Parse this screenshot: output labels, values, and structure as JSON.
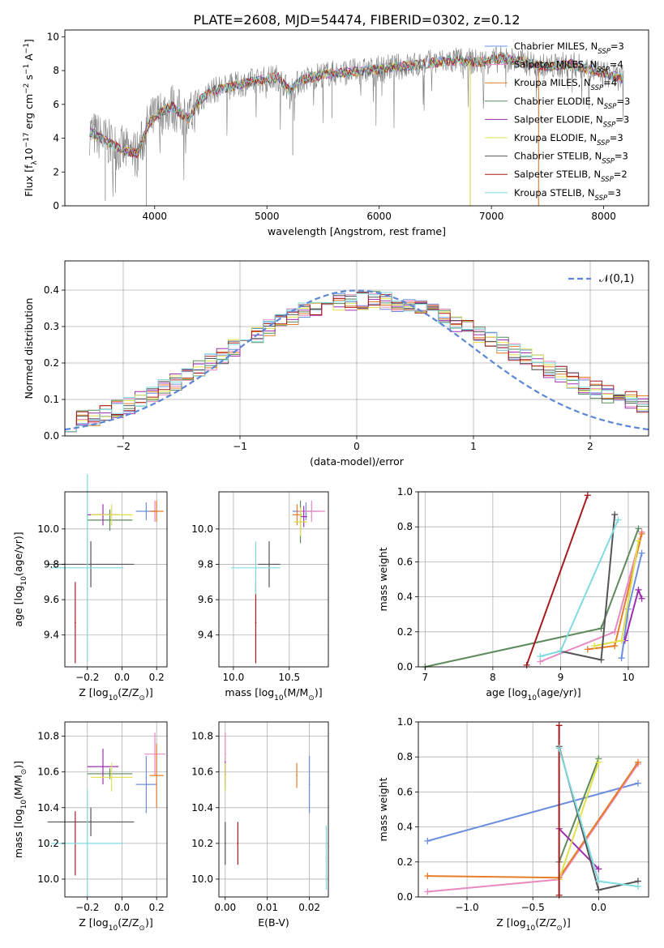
{
  "figure_title": "PLATE=2608, MJD=54474, FIBERID=0302, z=0.12",
  "models": [
    {
      "label": "Chabrier MILES, N$_{SSP}$=3",
      "name": "Chabrier MILES, N",
      "sub": "SSP",
      "suffix": "=3",
      "color": "#6b8ee0"
    },
    {
      "label": "Salpeter MILES, N$_{SSP}$=4",
      "name": "Salpeter MILES, N",
      "sub": "SSP",
      "suffix": "=4",
      "color": "#e889c0"
    },
    {
      "label": "Kroupa MILES, N$_{SSP}$=4",
      "name": "Kroupa MILES, N",
      "sub": "SSP",
      "suffix": "=4",
      "color": "#e57d2a"
    },
    {
      "label": "Chabrier ELODIE, N$_{SSP}$=3",
      "name": "Chabrier ELODIE, N",
      "sub": "SSP",
      "suffix": "=3",
      "color": "#5e8a5e"
    },
    {
      "label": "Salpeter ELODIE, N$_{SSP}$=3",
      "name": "Salpeter ELODIE, N",
      "sub": "SSP",
      "suffix": "=3",
      "color": "#9c2fb0"
    },
    {
      "label": "Kroupa ELODIE, N$_{SSP}$=3",
      "name": "Kroupa ELODIE, N",
      "sub": "SSP",
      "suffix": "=3",
      "color": "#e0e04a"
    },
    {
      "label": "Chabrier STELIB, N$_{SSP}$=3",
      "name": "Chabrier STELIB, N",
      "sub": "SSP",
      "suffix": "=3",
      "color": "#555555"
    },
    {
      "label": "Salpeter STELIB, N$_{SSP}$=2",
      "name": "Salpeter STELIB, N",
      "sub": "SSP",
      "suffix": "=2",
      "color": "#a61c1c"
    },
    {
      "label": "Kroupa STELIB, N$_{SSP}$=3",
      "name": "Kroupa STELIB, N",
      "sub": "SSP",
      "suffix": "=3",
      "color": "#7fdbe0"
    }
  ],
  "chart_data": [
    {
      "id": "spectrum",
      "type": "line",
      "xlabel": "wavelength [Angstrom, rest frame]",
      "ylabel": "Flux [f$_\\lambda$10$^{-17}$ erg cm$^{-2}$ s$^{-1}$ A$^{-1}$]",
      "xlim": [
        3200,
        8400
      ],
      "ylim": [
        0,
        10.4
      ],
      "xticks": [
        4000,
        5000,
        6000,
        7000,
        8000
      ],
      "yticks": [
        0,
        2,
        4,
        6,
        8,
        10
      ],
      "grid": false,
      "legend": "right",
      "data_color": "#808080",
      "continuum": [
        [
          3420,
          4.4
        ],
        [
          3600,
          3.7
        ],
        [
          3750,
          3.2
        ],
        [
          3850,
          3.1
        ],
        [
          3950,
          4.9
        ],
        [
          4050,
          5.5
        ],
        [
          4150,
          5.9
        ],
        [
          4300,
          5.1
        ],
        [
          4400,
          6.2
        ],
        [
          4500,
          6.8
        ],
        [
          4700,
          7.1
        ],
        [
          4900,
          7.4
        ],
        [
          5100,
          7.6
        ],
        [
          5200,
          6.8
        ],
        [
          5300,
          7.4
        ],
        [
          5500,
          7.8
        ],
        [
          5700,
          7.9
        ],
        [
          5900,
          8.0
        ],
        [
          6100,
          8.2
        ],
        [
          6300,
          8.3
        ],
        [
          6500,
          8.5
        ],
        [
          6700,
          8.6
        ],
        [
          6900,
          8.5
        ],
        [
          7100,
          8.7
        ],
        [
          7300,
          8.5
        ],
        [
          7500,
          8.2
        ],
        [
          7700,
          8.4
        ],
        [
          7900,
          8.0
        ],
        [
          8180,
          7.5
        ]
      ],
      "glitches": [
        [
          6810,
          0
        ],
        [
          7420,
          0
        ],
        [
          3560,
          0.3
        ],
        [
          5230,
          3.0
        ],
        [
          5580,
          5.2
        ],
        [
          3925,
          0
        ]
      ]
    },
    {
      "id": "residuals",
      "type": "bar",
      "xlabel": "(data-model)/error",
      "ylabel": "Normed distribution",
      "xlim": [
        -2.5,
        2.5
      ],
      "ylim": [
        0,
        0.48
      ],
      "xticks": [
        -2,
        -1,
        0,
        1,
        2
      ],
      "xtick_labels": [
        "−2",
        "−1",
        "0",
        "1",
        "2"
      ],
      "yticks": [
        0,
        0.1,
        0.2,
        0.3,
        0.4
      ],
      "yticks_labels": [
        "0.0",
        "0.1",
        "0.2",
        "0.3",
        "0.4"
      ],
      "grid": true,
      "legend": "top-right",
      "gaussian_label": "𝒩(0,1)",
      "gaussian_color": "#5b87d6",
      "bin_width": 0.1
    },
    {
      "id": "z_age",
      "type": "scatter",
      "xlabel": "Z [log$_{10}$(Z/Z$_\\odot$)]",
      "ylabel": "age  [log$_{10}$(age/yr)]",
      "xlim": [
        -0.33,
        0.26
      ],
      "ylim": [
        9.22,
        10.21
      ],
      "xticks": [
        -0.2,
        0.0,
        0.2
      ],
      "xtick_labels": [
        "−0.2",
        "0.0",
        "0.2"
      ],
      "yticks": [
        9.4,
        9.6,
        9.8,
        10.0
      ],
      "ytick_labels": [
        "9.4",
        "9.6",
        "9.8",
        "10.0"
      ],
      "grid": true,
      "points": [
        {
          "m": 0,
          "x": 0.14,
          "xe": 0.06,
          "y": 10.1,
          "ye": 0.05
        },
        {
          "m": 1,
          "x": 0.19,
          "xe": 0.02,
          "y": 10.1,
          "ye": 0.06
        },
        {
          "m": 2,
          "x": 0.2,
          "xe": 0.04,
          "y": 10.1,
          "ye": 0.06
        },
        {
          "m": 3,
          "x": -0.07,
          "xe": 0.13,
          "y": 10.05,
          "ye": 0.06
        },
        {
          "m": 4,
          "x": -0.11,
          "xe": 0.09,
          "y": 10.08,
          "ye": 0.06
        },
        {
          "m": 5,
          "x": -0.06,
          "xe": 0.12,
          "y": 10.08,
          "ye": 0.06
        },
        {
          "m": 6,
          "x": -0.18,
          "xe": 0.25,
          "y": 9.8,
          "ye": 0.13
        },
        {
          "m": 7,
          "x": -0.27,
          "xe": 0.0,
          "y": 9.47,
          "ye": 0.23
        },
        {
          "m": 8,
          "x": -0.2,
          "xe": 0.21,
          "y": 9.78,
          "ye": 0.53
        }
      ]
    },
    {
      "id": "mass_age",
      "type": "scatter",
      "xlabel": "mass [log$_{10}$(M/M$_\\odot$)]",
      "xlim": [
        9.87,
        10.85
      ],
      "ylim": [
        9.22,
        10.21
      ],
      "xticks": [
        10.0,
        10.5
      ],
      "xtick_labels": [
        "10.0",
        "10.5"
      ],
      "yticks": [
        9.4,
        9.6,
        9.8,
        10.0
      ],
      "ytick_labels": [
        "9.4",
        "9.6",
        "9.8",
        "10.0"
      ],
      "grid": true,
      "points": [
        {
          "m": 0,
          "x": 10.65,
          "xe": 0.12,
          "y": 10.1,
          "ye": 0.05
        },
        {
          "m": 1,
          "x": 10.7,
          "xe": 0.12,
          "y": 10.1,
          "ye": 0.06
        },
        {
          "m": 2,
          "x": 10.57,
          "xe": 0.04,
          "y": 10.08,
          "ye": 0.06
        },
        {
          "m": 3,
          "x": 10.6,
          "xe": 0.05,
          "y": 10.04,
          "ye": 0.12
        },
        {
          "m": 4,
          "x": 10.63,
          "xe": 0.03,
          "y": 10.07,
          "ye": 0.06
        },
        {
          "m": 5,
          "x": 10.6,
          "xe": 0.06,
          "y": 10.04,
          "ye": 0.08
        },
        {
          "m": 6,
          "x": 10.32,
          "xe": 0.1,
          "y": 9.8,
          "ye": 0.13
        },
        {
          "m": 7,
          "x": 10.2,
          "xe": 0.0,
          "y": 9.47,
          "ye": 0.23
        },
        {
          "m": 8,
          "x": 10.2,
          "xe": 0.22,
          "y": 9.78,
          "ye": 0.15
        }
      ]
    },
    {
      "id": "age_weight",
      "type": "line",
      "xlabel": "age  [log$_{10}$(age/yr)]",
      "ylabel": "mass weight",
      "xlim": [
        6.9,
        10.3
      ],
      "ylim": [
        0,
        1
      ],
      "xticks": [
        7,
        8,
        9,
        10
      ],
      "xtick_labels": [
        "7",
        "8",
        "9",
        "10"
      ],
      "yticks": [
        0,
        0.2,
        0.4,
        0.6,
        0.8,
        1.0
      ],
      "ytick_labels": [
        "0.0",
        "0.2",
        "0.4",
        "0.6",
        "0.8",
        "1.0"
      ],
      "grid": true,
      "series": [
        {
          "m": 0,
          "x": [
            9.9,
            10.0,
            10.2
          ],
          "y": [
            0.05,
            0.33,
            0.65
          ]
        },
        {
          "m": 1,
          "x": [
            8.7,
            9.8,
            10.2
          ],
          "y": [
            0.03,
            0.2,
            0.77
          ]
        },
        {
          "m": 2,
          "x": [
            9.4,
            9.8,
            10.2
          ],
          "y": [
            0.1,
            0.12,
            0.76
          ]
        },
        {
          "m": 3,
          "x": [
            7.0,
            9.6,
            10.15
          ],
          "y": [
            0.0,
            0.22,
            0.79
          ]
        },
        {
          "m": 4,
          "x": [
            9.95,
            10.15,
            10.2
          ],
          "y": [
            0.15,
            0.44,
            0.39
          ]
        },
        {
          "m": 5,
          "x": [
            9.5,
            9.9,
            10.15
          ],
          "y": [
            0.12,
            0.15,
            0.72
          ]
        },
        {
          "m": 6,
          "x": [
            9.0,
            9.6,
            9.8
          ],
          "y": [
            0.09,
            0.04,
            0.87
          ]
        },
        {
          "m": 7,
          "x": [
            8.5,
            9.4
          ],
          "y": [
            0.01,
            0.98
          ]
        },
        {
          "m": 8,
          "x": [
            8.7,
            9.0,
            9.85
          ],
          "y": [
            0.06,
            0.09,
            0.84
          ]
        }
      ]
    },
    {
      "id": "z_mass",
      "type": "scatter",
      "xlabel": "Z [log$_{10}$(Z/Z$_\\odot$)]",
      "ylabel": "mass [log$_{10}$(M/M$_\\odot$)]",
      "xlim": [
        -0.33,
        0.26
      ],
      "ylim": [
        9.9,
        10.88
      ],
      "xticks": [
        -0.2,
        0.0,
        0.2
      ],
      "xtick_labels": [
        "−0.2",
        "0.0",
        "0.2"
      ],
      "yticks": [
        10.0,
        10.2,
        10.4,
        10.6,
        10.8
      ],
      "ytick_labels": [
        "10.0",
        "10.2",
        "10.4",
        "10.6",
        "10.8"
      ],
      "grid": true,
      "points": [
        {
          "m": 0,
          "x": 0.14,
          "xe": 0.06,
          "y": 10.53,
          "ye": 0.16
        },
        {
          "m": 1,
          "x": 0.19,
          "xe": 0.06,
          "y": 10.7,
          "ye": 0.12
        },
        {
          "m": 2,
          "x": 0.2,
          "xe": 0.04,
          "y": 10.58,
          "ye": 0.18
        },
        {
          "m": 3,
          "x": -0.07,
          "xe": 0.13,
          "y": 10.59,
          "ye": 0.03
        },
        {
          "m": 4,
          "x": -0.11,
          "xe": 0.09,
          "y": 10.63,
          "ye": 0.1
        },
        {
          "m": 5,
          "x": -0.06,
          "xe": 0.12,
          "y": 10.57,
          "ye": 0.08
        },
        {
          "m": 6,
          "x": -0.18,
          "xe": 0.25,
          "y": 10.32,
          "ye": 0.08
        },
        {
          "m": 7,
          "x": -0.27,
          "xe": 0.0,
          "y": 10.2,
          "ye": 0.18
        },
        {
          "m": 8,
          "x": -0.2,
          "xe": 0.21,
          "y": 10.2,
          "ye": 0.3
        }
      ]
    },
    {
      "id": "ebv_mass",
      "type": "scatter",
      "xlabel": "E(B-V)",
      "xlim": [
        -0.0015,
        0.0245
      ],
      "ylim": [
        9.9,
        10.88
      ],
      "xticks": [
        0.0,
        0.01,
        0.02
      ],
      "xtick_labels": [
        "0.00",
        "0.01",
        "0.02"
      ],
      "yticks": [
        10.0,
        10.2,
        10.4,
        10.6,
        10.8
      ],
      "ytick_labels": [
        "10.0",
        "10.2",
        "10.4",
        "10.6",
        "10.8"
      ],
      "grid": true,
      "points": [
        {
          "m": 0,
          "x": 0.02,
          "xe": 0,
          "y": 10.53,
          "ye": 0.16
        },
        {
          "m": 1,
          "x": 0.0,
          "xe": 0,
          "y": 10.7,
          "ye": 0.12
        },
        {
          "m": 2,
          "x": 0.017,
          "xe": 0,
          "y": 10.58,
          "ye": 0.07
        },
        {
          "m": 3,
          "x": 0.0,
          "xe": 0,
          "y": 10.57,
          "ye": 0.07
        },
        {
          "m": 4,
          "x": 0.0,
          "xe": 0,
          "y": 10.6,
          "ye": 0.06
        },
        {
          "m": 5,
          "x": 0.0,
          "xe": 0,
          "y": 10.57,
          "ye": 0.08
        },
        {
          "m": 6,
          "x": 0.0,
          "xe": 0,
          "y": 10.2,
          "ye": 0.12
        },
        {
          "m": 7,
          "x": 0.003,
          "xe": 0,
          "y": 10.2,
          "ye": 0.12
        },
        {
          "m": 8,
          "x": 0.024,
          "xe": 0,
          "y": 10.12,
          "ye": 0.18
        }
      ]
    },
    {
      "id": "z_weight",
      "type": "line",
      "xlabel": "Z [log$_{10}$(Z/Z$_\\odot$)]",
      "ylabel": "mass weight",
      "xlim": [
        -1.37,
        0.38
      ],
      "ylim": [
        0,
        1
      ],
      "xticks": [
        -1.0,
        -0.5,
        0.0
      ],
      "xtick_labels": [
        "−1.0",
        "−0.5",
        "0.0"
      ],
      "yticks": [
        0,
        0.2,
        0.4,
        0.6,
        0.8,
        1.0
      ],
      "ytick_labels": [
        "0.0",
        "0.2",
        "0.4",
        "0.6",
        "0.8",
        "1.0"
      ],
      "grid": true,
      "series": [
        {
          "m": 0,
          "x": [
            -1.3,
            0.3
          ],
          "y": [
            0.32,
            0.65
          ]
        },
        {
          "m": 1,
          "x": [
            -1.3,
            -0.3,
            0.3
          ],
          "y": [
            0.03,
            0.1,
            0.76
          ]
        },
        {
          "m": 2,
          "x": [
            -1.3,
            -0.3,
            0.3
          ],
          "y": [
            0.12,
            0.11,
            0.77
          ]
        },
        {
          "m": 3,
          "x": [
            -0.3,
            0.0
          ],
          "y": [
            0.2,
            0.79
          ]
        },
        {
          "m": 4,
          "x": [
            -0.3,
            0.0
          ],
          "y": [
            0.39,
            0.16
          ]
        },
        {
          "m": 5,
          "x": [
            -0.3,
            0.0
          ],
          "y": [
            0.1,
            0.77
          ]
        },
        {
          "m": 6,
          "x": [
            -0.3,
            0.0,
            0.3
          ],
          "y": [
            0.86,
            0.04,
            0.09
          ]
        },
        {
          "m": 7,
          "x": [
            -0.3,
            -0.3
          ],
          "y": [
            0.01,
            0.98
          ]
        },
        {
          "m": 8,
          "x": [
            -0.3,
            0.0,
            0.3
          ],
          "y": [
            0.85,
            0.09,
            0.06
          ]
        }
      ]
    }
  ]
}
